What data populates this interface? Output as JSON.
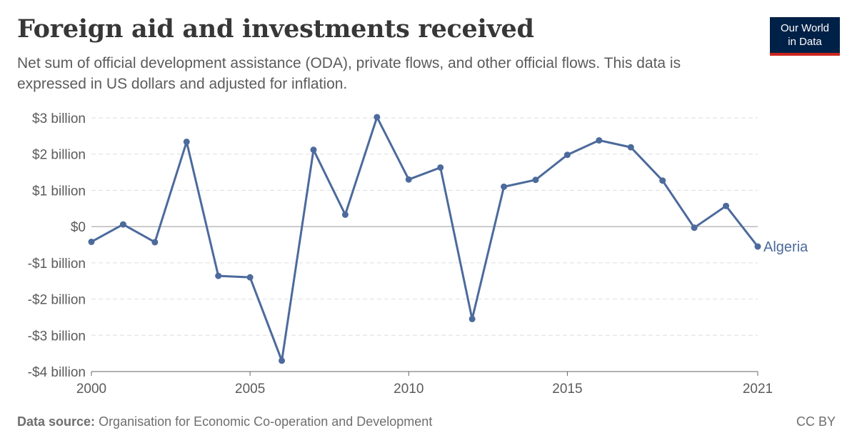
{
  "header": {
    "title": "Foreign aid and investments received",
    "subtitle": "Net sum of official development assistance (ODA), private flows, and other official flows. This data is expressed in US dollars and adjusted for inflation."
  },
  "logo": {
    "line1": "Our World",
    "line2": "in Data"
  },
  "footer": {
    "source_label": "Data source:",
    "source_text": "Organisation for Economic Co-operation and Development",
    "license": "CC BY"
  },
  "colors": {
    "series": "#4c6a9c",
    "grid": "#dddddd",
    "zero": "#999999",
    "axis": "#666666"
  },
  "chart_data": {
    "type": "line",
    "title": "Foreign aid and investments received",
    "ylim": [
      -4,
      3
    ],
    "xlim": [
      2000,
      2021
    ],
    "grid": true,
    "legend": "right-end-label",
    "y_ticks": [
      {
        "value": 3,
        "label": "$3 billion"
      },
      {
        "value": 2,
        "label": "$2 billion"
      },
      {
        "value": 1,
        "label": "$1 billion"
      },
      {
        "value": 0,
        "label": "$0"
      },
      {
        "value": -1,
        "label": "-$1 billion"
      },
      {
        "value": -2,
        "label": "-$2 billion"
      },
      {
        "value": -3,
        "label": "-$3 billion"
      },
      {
        "value": -4,
        "label": "-$4 billion"
      }
    ],
    "x_ticks": [
      {
        "value": 2000,
        "label": "2000"
      },
      {
        "value": 2005,
        "label": "2005"
      },
      {
        "value": 2010,
        "label": "2010"
      },
      {
        "value": 2015,
        "label": "2015"
      },
      {
        "value": 2021,
        "label": "2021"
      }
    ],
    "series": [
      {
        "name": "Algeria",
        "unit": "billion US$",
        "x": [
          2000,
          2001,
          2002,
          2003,
          2004,
          2005,
          2006,
          2007,
          2008,
          2009,
          2010,
          2011,
          2012,
          2013,
          2014,
          2015,
          2016,
          2017,
          2018,
          2019,
          2020,
          2021
        ],
        "values": [
          -0.42,
          0.06,
          -0.43,
          2.34,
          -1.36,
          -1.4,
          -3.7,
          2.12,
          0.33,
          3.02,
          1.3,
          1.63,
          -2.55,
          1.1,
          1.29,
          1.98,
          2.38,
          2.19,
          1.27,
          -0.03,
          0.57,
          -0.55
        ]
      }
    ]
  }
}
